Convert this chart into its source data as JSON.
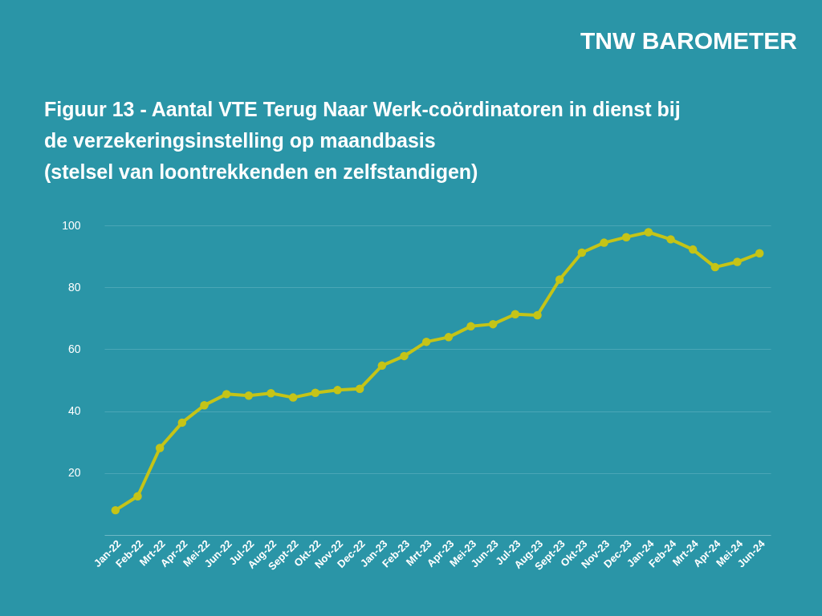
{
  "chart_data": {
    "type": "line",
    "title": [
      "Figuur 13 - Aantal VTE Terug Naar Werk-coördinatoren in dienst bij",
      "de verzekeringsinstelling op maandbasis",
      "(stelsel van loontrekkenden en zelfstandigen)"
    ],
    "annotations": [
      "TNW BAROMETER"
    ],
    "categories": [
      "Jan-22",
      "Feb-22",
      "Mrt-22",
      "Apr-22",
      "Mei-22",
      "Jun-22",
      "Jul-22",
      "Aug-22",
      "Sept-22",
      "Okt-22",
      "Nov-22",
      "Dec-22",
      "Jan-23",
      "Feb-23",
      "Mrt-23",
      "Apr-23",
      "Mei-23",
      "Jun-23",
      "Jul-23",
      "Aug-23",
      "Sept-23",
      "Okt-23",
      "Nov-23",
      "Dec-23",
      "Jan-24",
      "Feb-24",
      "Mrt-24",
      "Apr-24",
      "Mei-24",
      "Jun-24"
    ],
    "series": [
      {
        "color": "#c5c417",
        "values": [
          8.0,
          12.5,
          28.1,
          36.3,
          41.9,
          45.5,
          45.0,
          45.8,
          44.4,
          45.9,
          46.8,
          47.2,
          54.7,
          57.8,
          62.4,
          63.9,
          67.4,
          68.1,
          71.3,
          71.0,
          82.5,
          91.2,
          94.4,
          96.2,
          97.8,
          95.5,
          92.2,
          86.5,
          88.2,
          91.0
        ]
      }
    ],
    "ylim": [
      0,
      100
    ],
    "yticks": [
      20,
      40,
      60,
      80,
      100
    ],
    "grid": "y",
    "marker": "circle",
    "line_style": "solid"
  }
}
